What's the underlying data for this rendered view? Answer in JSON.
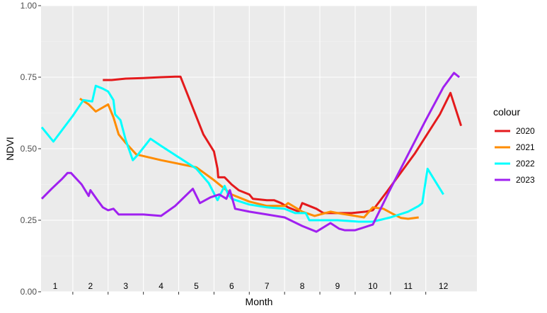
{
  "chart_data": {
    "type": "line",
    "xlabel": "Month",
    "ylabel": "NDVI",
    "xlim": [
      0.6,
      12.95
    ],
    "ylim": [
      0,
      1
    ],
    "yticks": [
      "0.00",
      "0.25",
      "0.50",
      "0.75",
      "1.00"
    ],
    "month_labels": [
      "1",
      "2",
      "3",
      "4",
      "5",
      "6",
      "7",
      "8",
      "9",
      "10",
      "11",
      "12"
    ],
    "grid": true,
    "legend": {
      "title": "colour",
      "position": "right"
    },
    "series": [
      {
        "name": "2020",
        "color": "#e41a1c",
        "points": [
          [
            2.35,
            0.74
          ],
          [
            2.6,
            0.74
          ],
          [
            3.0,
            0.745
          ],
          [
            3.5,
            0.747
          ],
          [
            4.0,
            0.75
          ],
          [
            4.4,
            0.752
          ],
          [
            4.55,
            0.752
          ],
          [
            5.2,
            0.55
          ],
          [
            5.5,
            0.49
          ],
          [
            5.6,
            0.43
          ],
          [
            5.62,
            0.4
          ],
          [
            5.8,
            0.4
          ],
          [
            6.0,
            0.375
          ],
          [
            6.2,
            0.355
          ],
          [
            6.5,
            0.34
          ],
          [
            6.6,
            0.325
          ],
          [
            7.0,
            0.32
          ],
          [
            7.2,
            0.32
          ],
          [
            7.4,
            0.31
          ],
          [
            7.6,
            0.295
          ],
          [
            7.9,
            0.28
          ],
          [
            8.0,
            0.31
          ],
          [
            8.2,
            0.3
          ],
          [
            8.4,
            0.29
          ],
          [
            8.6,
            0.275
          ],
          [
            9.0,
            0.275
          ],
          [
            9.4,
            0.275
          ],
          [
            9.8,
            0.28
          ],
          [
            10.0,
            0.285
          ],
          [
            10.4,
            0.35
          ],
          [
            11.2,
            0.485
          ],
          [
            11.9,
            0.62
          ],
          [
            12.2,
            0.695
          ],
          [
            12.5,
            0.58
          ]
        ]
      },
      {
        "name": "2021",
        "color": "#ff8c00",
        "points": [
          [
            1.7,
            0.675
          ],
          [
            1.95,
            0.655
          ],
          [
            2.15,
            0.63
          ],
          [
            2.5,
            0.655
          ],
          [
            2.65,
            0.61
          ],
          [
            2.8,
            0.55
          ],
          [
            3.0,
            0.52
          ],
          [
            3.3,
            0.48
          ],
          [
            4.0,
            0.46
          ],
          [
            5.0,
            0.435
          ],
          [
            5.5,
            0.39
          ],
          [
            6.0,
            0.34
          ],
          [
            6.5,
            0.315
          ],
          [
            7.0,
            0.3
          ],
          [
            7.5,
            0.3
          ],
          [
            7.6,
            0.31
          ],
          [
            8.0,
            0.28
          ],
          [
            8.35,
            0.265
          ],
          [
            8.8,
            0.28
          ],
          [
            9.0,
            0.275
          ],
          [
            9.5,
            0.265
          ],
          [
            9.75,
            0.26
          ],
          [
            10.0,
            0.295
          ],
          [
            10.3,
            0.29
          ],
          [
            10.6,
            0.27
          ],
          [
            10.8,
            0.258
          ],
          [
            11.0,
            0.255
          ],
          [
            11.3,
            0.26
          ]
        ]
      },
      {
        "name": "2022",
        "color": "#00ffff",
        "points": [
          [
            0.62,
            0.575
          ],
          [
            0.95,
            0.525
          ],
          [
            1.5,
            0.615
          ],
          [
            1.8,
            0.67
          ],
          [
            2.05,
            0.665
          ],
          [
            2.15,
            0.72
          ],
          [
            2.35,
            0.71
          ],
          [
            2.5,
            0.7
          ],
          [
            2.65,
            0.67
          ],
          [
            2.7,
            0.62
          ],
          [
            2.85,
            0.6
          ],
          [
            3.0,
            0.53
          ],
          [
            3.2,
            0.46
          ],
          [
            3.35,
            0.48
          ],
          [
            3.7,
            0.535
          ],
          [
            4.0,
            0.51
          ],
          [
            4.5,
            0.47
          ],
          [
            5.0,
            0.43
          ],
          [
            5.35,
            0.38
          ],
          [
            5.6,
            0.32
          ],
          [
            5.8,
            0.37
          ],
          [
            5.9,
            0.34
          ],
          [
            6.0,
            0.325
          ],
          [
            6.5,
            0.305
          ],
          [
            7.0,
            0.295
          ],
          [
            7.5,
            0.29
          ],
          [
            7.8,
            0.275
          ],
          [
            8.1,
            0.275
          ],
          [
            8.2,
            0.25
          ],
          [
            8.6,
            0.25
          ],
          [
            9.0,
            0.25
          ],
          [
            9.6,
            0.245
          ],
          [
            10.0,
            0.245
          ],
          [
            10.5,
            0.26
          ],
          [
            11.0,
            0.28
          ],
          [
            11.3,
            0.3
          ],
          [
            11.4,
            0.31
          ],
          [
            11.55,
            0.43
          ],
          [
            12.0,
            0.34
          ]
        ]
      },
      {
        "name": "2023",
        "color": "#a020f0",
        "points": [
          [
            0.62,
            0.325
          ],
          [
            0.9,
            0.36
          ],
          [
            1.2,
            0.395
          ],
          [
            1.35,
            0.415
          ],
          [
            1.45,
            0.415
          ],
          [
            1.75,
            0.375
          ],
          [
            1.95,
            0.335
          ],
          [
            2.0,
            0.355
          ],
          [
            2.2,
            0.32
          ],
          [
            2.35,
            0.295
          ],
          [
            2.5,
            0.285
          ],
          [
            2.65,
            0.29
          ],
          [
            2.8,
            0.27
          ],
          [
            3.5,
            0.27
          ],
          [
            4.0,
            0.265
          ],
          [
            4.4,
            0.3
          ],
          [
            4.9,
            0.36
          ],
          [
            5.1,
            0.31
          ],
          [
            5.4,
            0.33
          ],
          [
            5.65,
            0.34
          ],
          [
            5.85,
            0.325
          ],
          [
            5.95,
            0.355
          ],
          [
            6.1,
            0.29
          ],
          [
            6.5,
            0.28
          ],
          [
            7.0,
            0.27
          ],
          [
            7.5,
            0.26
          ],
          [
            8.0,
            0.23
          ],
          [
            8.4,
            0.21
          ],
          [
            8.8,
            0.24
          ],
          [
            9.05,
            0.22
          ],
          [
            9.2,
            0.215
          ],
          [
            9.5,
            0.215
          ],
          [
            10.0,
            0.235
          ],
          [
            10.5,
            0.36
          ],
          [
            11.0,
            0.48
          ],
          [
            11.5,
            0.6
          ],
          [
            12.0,
            0.715
          ],
          [
            12.3,
            0.765
          ],
          [
            12.45,
            0.75
          ]
        ]
      }
    ]
  }
}
